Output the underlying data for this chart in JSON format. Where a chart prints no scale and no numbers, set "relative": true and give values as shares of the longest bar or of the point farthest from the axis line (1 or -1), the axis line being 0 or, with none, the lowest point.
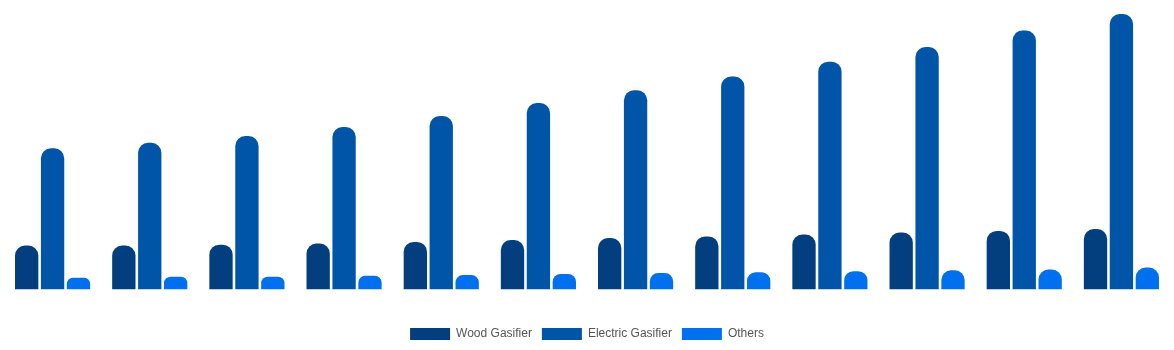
{
  "chart_data": {
    "type": "bar",
    "relative": true,
    "categories": [
      null,
      null,
      null,
      null,
      null,
      null,
      null,
      null,
      null,
      null,
      null,
      null
    ],
    "series": [
      {
        "name": "Wood Gasifier",
        "color": "#033f7f",
        "values": [
          0.16,
          0.16,
          0.163,
          0.167,
          0.173,
          0.18,
          0.187,
          0.193,
          0.2,
          0.207,
          0.213,
          0.22
        ]
      },
      {
        "name": "Electric Gasifier",
        "color": "#0055a8",
        "values": [
          0.513,
          0.533,
          0.557,
          0.59,
          0.63,
          0.677,
          0.723,
          0.773,
          0.827,
          0.88,
          0.94,
          1
        ]
      },
      {
        "name": "Others",
        "color": "#0070ee",
        "values": [
          0.043,
          0.047,
          0.047,
          0.05,
          0.053,
          0.057,
          0.06,
          0.063,
          0.067,
          0.07,
          0.073,
          0.08
        ]
      }
    ],
    "grid": false,
    "legend": "bottom"
  }
}
